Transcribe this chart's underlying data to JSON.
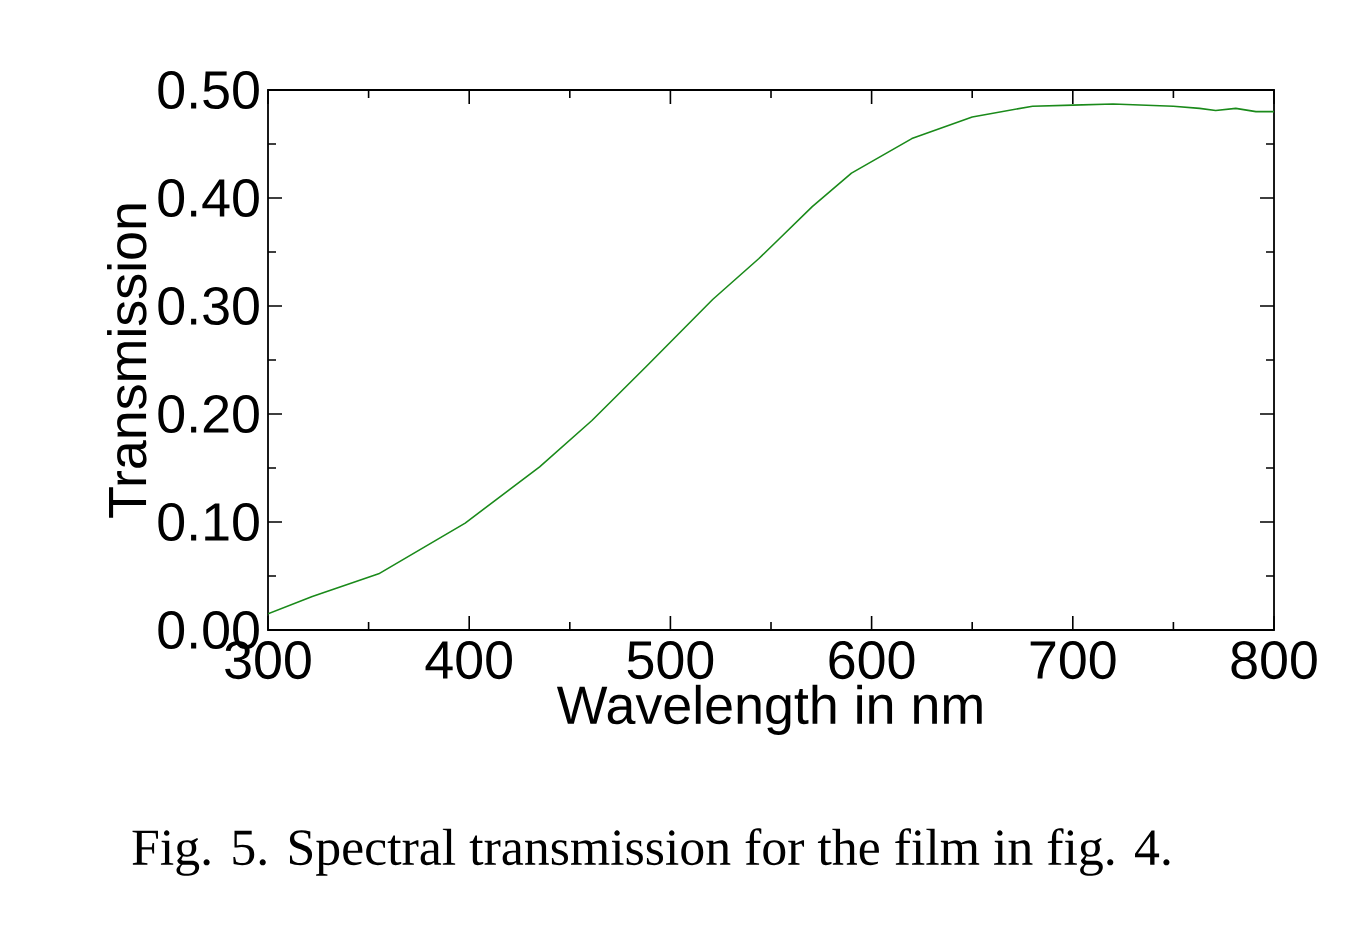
{
  "chart_data": {
    "type": "line",
    "xlabel": "Wavelength in nm",
    "ylabel": "Transmission",
    "x": [
      300,
      322,
      355,
      398,
      435,
      461,
      488,
      521,
      544,
      554,
      570.5,
      590,
      620,
      650,
      680,
      700,
      720,
      750,
      763,
      771,
      781,
      791,
      800
    ],
    "series": [
      {
        "color": "#1a8a1a",
        "values": [
          0.015,
          0.031,
          0.052,
          0.099,
          0.151,
          0.194,
          0.244,
          0.306,
          0.344,
          0.362,
          0.392,
          0.423,
          0.455,
          0.475,
          0.485,
          0.486,
          0.487,
          0.485,
          0.483,
          0.481,
          0.483,
          0.48,
          0.48
        ]
      }
    ],
    "xlim": [
      300,
      800
    ],
    "ylim": [
      0,
      0.5
    ],
    "xticks": [
      300,
      400,
      500,
      600,
      700,
      800
    ],
    "yticks": [
      {
        "value": 0,
        "label": "0.00"
      },
      {
        "value": 0.1,
        "label": "0.10"
      },
      {
        "value": 0.2,
        "label": "0.20"
      },
      {
        "value": 0.3,
        "label": "0.30"
      },
      {
        "value": 0.4,
        "label": "0.40"
      },
      {
        "value": 0.5,
        "label": "0.50"
      }
    ],
    "grid": false,
    "marker": "none",
    "line_style": "solid",
    "annotations": [
      "Fig. 5. Spectral transmission for the film in fig. 4."
    ]
  }
}
